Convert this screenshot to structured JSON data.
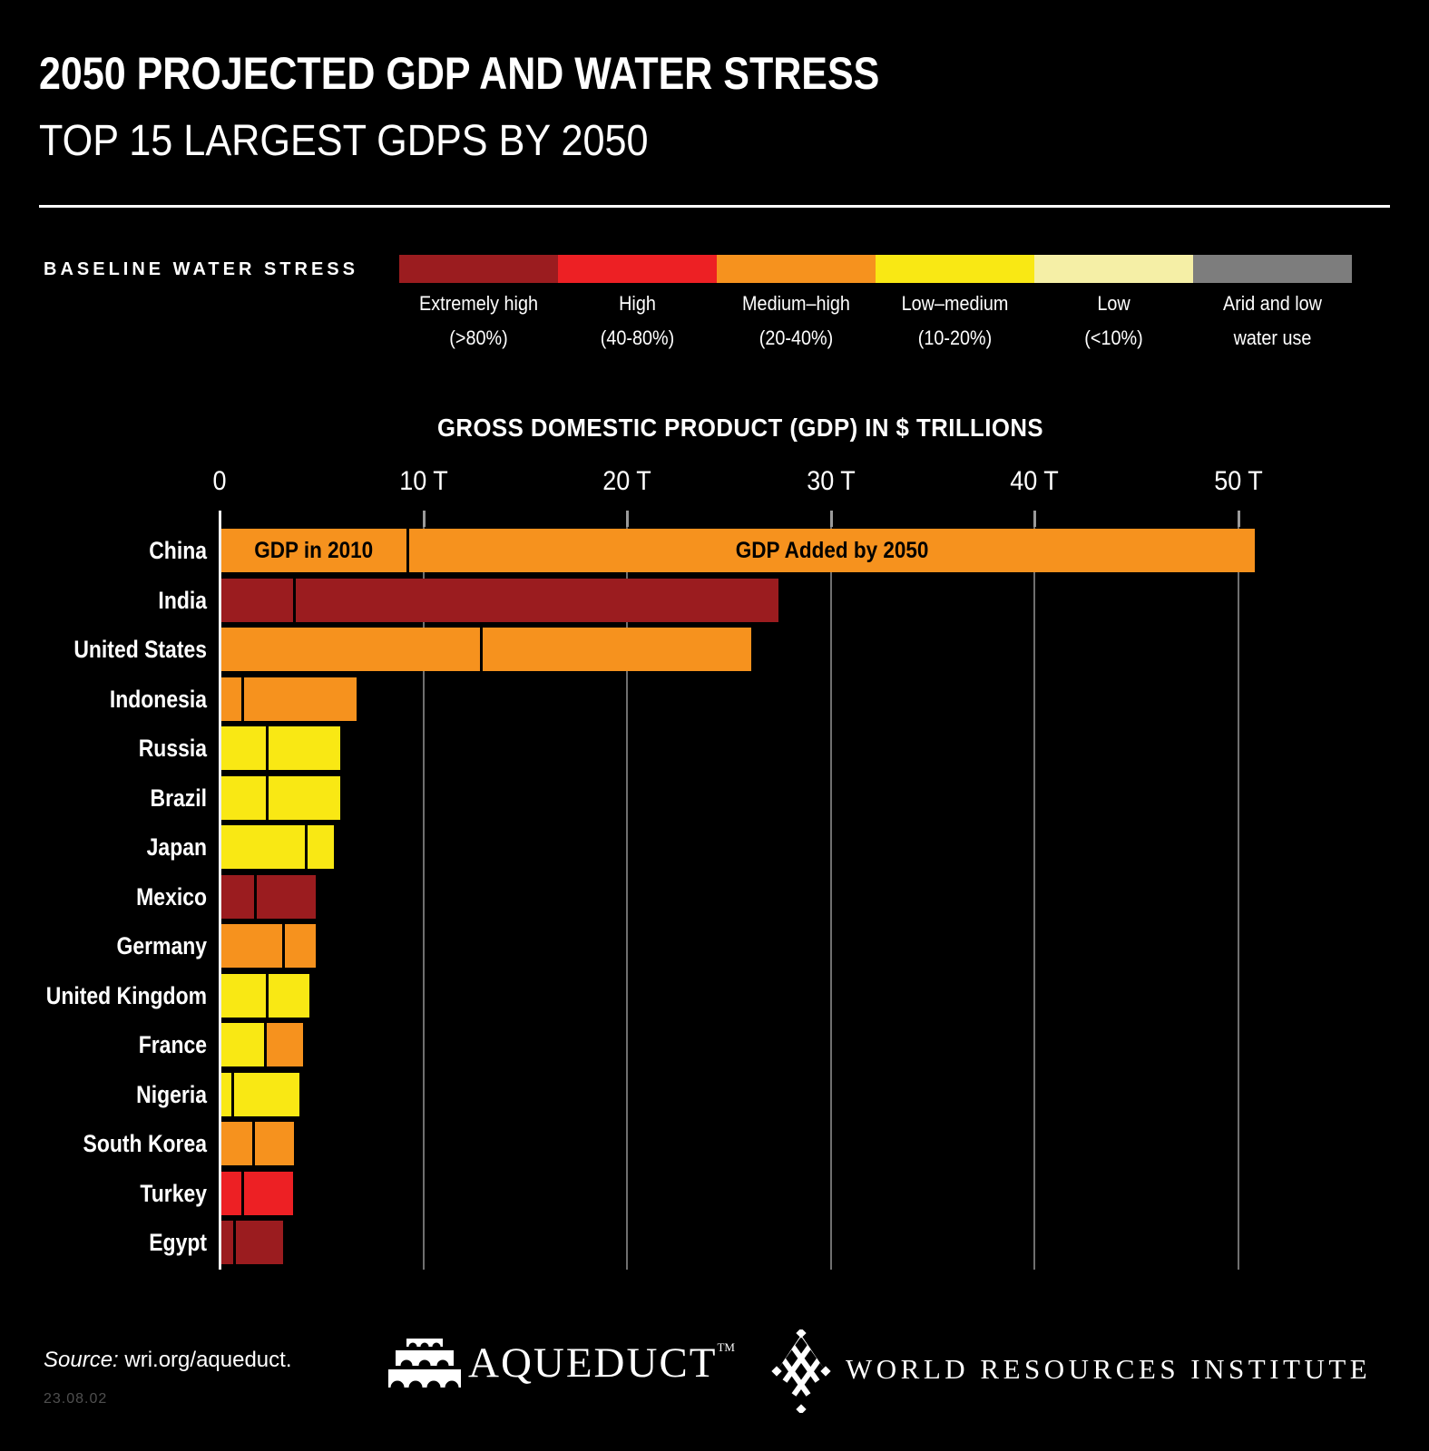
{
  "header": {
    "title": "2050 PROJECTED GDP AND WATER STRESS",
    "subtitle": "TOP 15 LARGEST GDPS BY 2050"
  },
  "legend": {
    "label": "BASELINE WATER STRESS",
    "categories": [
      {
        "key": "extremely_high",
        "name": "Extremely high",
        "range": "(>80%)",
        "color": "#9B1C1F"
      },
      {
        "key": "high",
        "name": "High",
        "range": "(40-80%)",
        "color": "#ED2024"
      },
      {
        "key": "medium_high",
        "name": "Medium–high",
        "range": "(20-40%)",
        "color": "#F6921E"
      },
      {
        "key": "low_medium",
        "name": "Low–medium",
        "range": "(10-20%)",
        "color": "#F9E814"
      },
      {
        "key": "low",
        "name": "Low",
        "range": "(<10%)",
        "color": "#F5EFA6"
      },
      {
        "key": "arid_low",
        "name": "Arid and low",
        "range": "water use",
        "color": "#7D7D7D"
      }
    ]
  },
  "chart_data": {
    "type": "bar",
    "orientation": "horizontal",
    "stacked": true,
    "title": "GROSS DOMESTIC PRODUCT (GDP) IN $ TRILLIONS",
    "unit": "$ trillions",
    "xlim": [
      0,
      55
    ],
    "grid": true,
    "x_ticks": [
      {
        "value": 0,
        "label": "0"
      },
      {
        "value": 10,
        "label": "10 T"
      },
      {
        "value": 20,
        "label": "20 T"
      },
      {
        "value": 30,
        "label": "30 T"
      },
      {
        "value": 40,
        "label": "40 T"
      },
      {
        "value": 50,
        "label": "50 T"
      }
    ],
    "segment_labels": {
      "gdp_2010": "GDP in 2010",
      "gdp_added": "GDP Added by 2050"
    },
    "countries": [
      {
        "name": "China",
        "gdp_2010_T": 9.1,
        "gdp_added_T": 41.5,
        "gdp_2050_total_T": 50.6,
        "stress_2010": "medium_high",
        "stress_added": "medium_high"
      },
      {
        "name": "India",
        "gdp_2010_T": 3.5,
        "gdp_added_T": 23.7,
        "gdp_2050_total_T": 27.2,
        "stress_2010": "extremely_high",
        "stress_added": "extremely_high"
      },
      {
        "name": "United States",
        "gdp_2010_T": 12.7,
        "gdp_added_T": 13.2,
        "gdp_2050_total_T": 25.9,
        "stress_2010": "medium_high",
        "stress_added": "medium_high"
      },
      {
        "name": "Indonesia",
        "gdp_2010_T": 1.0,
        "gdp_added_T": 5.5,
        "gdp_2050_total_T": 6.5,
        "stress_2010": "medium_high",
        "stress_added": "medium_high"
      },
      {
        "name": "Russia",
        "gdp_2010_T": 2.2,
        "gdp_added_T": 3.5,
        "gdp_2050_total_T": 5.7,
        "stress_2010": "low_medium",
        "stress_added": "low_medium"
      },
      {
        "name": "Brazil",
        "gdp_2010_T": 2.2,
        "gdp_added_T": 3.5,
        "gdp_2050_total_T": 5.7,
        "stress_2010": "low_medium",
        "stress_added": "low_medium"
      },
      {
        "name": "Japan",
        "gdp_2010_T": 4.1,
        "gdp_added_T": 1.3,
        "gdp_2050_total_T": 5.4,
        "stress_2010": "low_medium",
        "stress_added": "low_medium"
      },
      {
        "name": "Mexico",
        "gdp_2010_T": 1.6,
        "gdp_added_T": 2.9,
        "gdp_2050_total_T": 4.5,
        "stress_2010": "extremely_high",
        "stress_added": "extremely_high"
      },
      {
        "name": "Germany",
        "gdp_2010_T": 3.0,
        "gdp_added_T": 1.5,
        "gdp_2050_total_T": 4.5,
        "stress_2010": "medium_high",
        "stress_added": "medium_high"
      },
      {
        "name": "United Kingdom",
        "gdp_2010_T": 2.2,
        "gdp_added_T": 2.0,
        "gdp_2050_total_T": 4.2,
        "stress_2010": "low_medium",
        "stress_added": "low_medium"
      },
      {
        "name": "France",
        "gdp_2010_T": 2.1,
        "gdp_added_T": 1.8,
        "gdp_2050_total_T": 3.9,
        "stress_2010": "low_medium",
        "stress_added": "medium_high"
      },
      {
        "name": "Nigeria",
        "gdp_2010_T": 0.5,
        "gdp_added_T": 3.2,
        "gdp_2050_total_T": 3.7,
        "stress_2010": "low_medium",
        "stress_added": "low_medium"
      },
      {
        "name": "South Korea",
        "gdp_2010_T": 1.5,
        "gdp_added_T": 1.9,
        "gdp_2050_total_T": 3.4,
        "stress_2010": "medium_high",
        "stress_added": "medium_high"
      },
      {
        "name": "Turkey",
        "gdp_2010_T": 1.0,
        "gdp_added_T": 2.4,
        "gdp_2050_total_T": 3.4,
        "stress_2010": "high",
        "stress_added": "high"
      },
      {
        "name": "Egypt",
        "gdp_2010_T": 0.6,
        "gdp_added_T": 2.3,
        "gdp_2050_total_T": 2.9,
        "stress_2010": "extremely_high",
        "stress_added": "extremely_high"
      }
    ],
    "legend_position": "top"
  },
  "footer": {
    "source_label": "Source:",
    "source_text": " wri.org/aqueduct.",
    "date_code": "23.08.02",
    "aqueduct_logo_text": "AQUEDUCT",
    "aqueduct_tm": "TM",
    "wri_logo_text": "WORLD RESOURCES INSTITUTE"
  },
  "colors": {
    "background": "#000000",
    "text": "#FFFFFF",
    "gridline": "#6F6F6F",
    "axis": "#F0F0F0",
    "bar_divider": "#000000"
  }
}
